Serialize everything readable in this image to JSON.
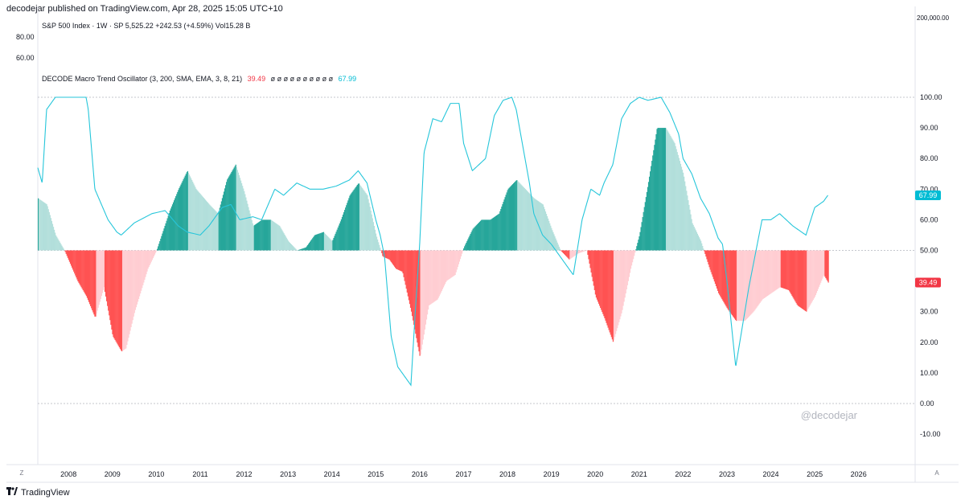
{
  "header": {
    "publish_line": "decodejar published on TradingView.com, Apr 28, 2025 15:05 UTC+10",
    "symbol_line": "S&P 500 Index · 1W · SP  5,525.22  +242.53 (+4.59%)  Vol15.28 B",
    "indicator_name": "DECODE Macro Trend Oscillator (3, 200, SMA, EMA, 3, 8, 21)",
    "indicator_value_red": "39.49",
    "indicator_empty_values": "ø  ø  ø  ø  ø  ø  ø  ø  ø  ø",
    "indicator_value_blue": "67.99",
    "left_scale_top": "80.00",
    "left_scale_bottom": "60.00"
  },
  "footer": {
    "brand": "TradingView",
    "left_button": "Z",
    "right_button": "A"
  },
  "watermark": "@decodejar",
  "colors": {
    "teal_dark": "#26a69a",
    "teal_light": "#b2dfdb",
    "red_dark": "#ff5252",
    "red_light": "#ffcdd2",
    "line": "#26c6da",
    "badge_blue": "#00bcd4",
    "badge_red": "#f23645"
  },
  "chart_data": {
    "type": "area",
    "title": "DECODE Macro Trend Oscillator (3, 200, SMA, EMA, 3, 8, 21)",
    "xlabel": "",
    "ylabel": "",
    "xlim": [
      2007.3,
      2026.8
    ],
    "ylim": [
      -20,
      125
    ],
    "midline": 50,
    "x_ticks": [
      "2008",
      "2009",
      "2010",
      "2011",
      "2012",
      "2013",
      "2014",
      "2015",
      "2016",
      "2017",
      "2018",
      "2019",
      "2020",
      "2021",
      "2022",
      "2023",
      "2024",
      "2025",
      "2026"
    ],
    "x_tick_values": [
      2008,
      2009,
      2010,
      2011,
      2012,
      2013,
      2014,
      2015,
      2016,
      2017,
      2018,
      2019,
      2020,
      2021,
      2022,
      2023,
      2024,
      2025,
      2026
    ],
    "y_ticks": [
      "100.00",
      "90.00",
      "80.00",
      "70.00",
      "60.00",
      "50.00",
      "40.00",
      "30.00",
      "20.00",
      "10.00",
      "0.00",
      "-10.00"
    ],
    "y_tick_values": [
      100,
      90,
      80,
      70,
      60,
      50,
      40,
      30,
      20,
      10,
      0,
      -10
    ],
    "top_tick_label": "200,000.00",
    "dashed_levels": [
      100,
      50,
      0
    ],
    "last_values": {
      "line": "67.99",
      "histogram": "39.49"
    },
    "series": [
      {
        "name": "Oscillator line",
        "x": [
          2007.3,
          2007.4,
          2007.5,
          2007.7,
          2008.2,
          2008.4,
          2008.45,
          2008.6,
          2008.9,
          2009.1,
          2009.2,
          2009.5,
          2009.9,
          2010.2,
          2010.5,
          2010.7,
          2011.0,
          2011.2,
          2011.5,
          2011.7,
          2011.9,
          2012.2,
          2012.4,
          2012.7,
          2012.9,
          2013.2,
          2013.5,
          2013.8,
          2014.1,
          2014.4,
          2014.6,
          2014.8,
          2015.0,
          2015.1,
          2015.2,
          2015.35,
          2015.5,
          2015.6,
          2015.8,
          2015.9,
          2016.0,
          2016.1,
          2016.3,
          2016.5,
          2016.7,
          2016.9,
          2017.0,
          2017.2,
          2017.5,
          2017.7,
          2017.9,
          2018.1,
          2018.2,
          2018.3,
          2018.5,
          2018.6,
          2018.8,
          2019.0,
          2019.1,
          2019.2,
          2019.5,
          2019.7,
          2019.9,
          2020.1,
          2020.2,
          2020.4,
          2020.6,
          2020.8,
          2021.0,
          2021.2,
          2021.5,
          2021.7,
          2021.9,
          2022.0,
          2022.2,
          2022.4,
          2022.6,
          2022.8,
          2022.9,
          2023.0,
          2023.2,
          2023.5,
          2023.8,
          2024.0,
          2024.2,
          2024.5,
          2024.6,
          2024.8,
          2025.0,
          2025.2,
          2025.3
        ],
        "values": [
          77,
          72,
          96,
          100,
          100,
          100,
          96,
          70,
          60,
          56,
          55,
          59,
          62,
          63,
          58,
          56,
          55,
          58,
          64,
          65,
          60,
          61,
          60,
          70,
          68,
          72,
          70,
          70,
          71,
          73,
          76,
          72,
          60,
          55,
          48,
          22,
          12,
          10,
          6,
          30,
          52,
          82,
          93,
          92,
          98,
          98,
          85,
          76,
          80,
          94,
          99,
          100,
          96,
          88,
          72,
          62,
          55,
          52,
          50,
          48,
          42,
          60,
          70,
          68,
          72,
          78,
          93,
          98,
          100,
          99,
          100,
          95,
          88,
          80,
          75,
          67,
          62,
          54,
          52,
          40,
          12,
          38,
          60,
          60,
          62,
          58,
          57,
          55,
          64,
          66,
          68
        ]
      },
      {
        "name": "Histogram",
        "x": [
          2007.3,
          2007.5,
          2007.7,
          2007.9,
          2008.2,
          2008.4,
          2008.6,
          2008.8,
          2009.0,
          2009.2,
          2009.3,
          2009.5,
          2009.8,
          2010.0,
          2010.3,
          2010.5,
          2010.7,
          2010.9,
          2011.2,
          2011.4,
          2011.6,
          2011.8,
          2012.0,
          2012.2,
          2012.4,
          2012.6,
          2012.8,
          2013.0,
          2013.2,
          2013.4,
          2013.6,
          2013.8,
          2014.0,
          2014.2,
          2014.4,
          2014.6,
          2014.8,
          2015.0,
          2015.15,
          2015.3,
          2015.45,
          2015.6,
          2015.8,
          2016.0,
          2016.2,
          2016.4,
          2016.6,
          2016.8,
          2017.0,
          2017.2,
          2017.4,
          2017.6,
          2017.8,
          2018.0,
          2018.2,
          2018.4,
          2018.6,
          2018.8,
          2019.0,
          2019.2,
          2019.4,
          2019.6,
          2019.8,
          2020.0,
          2020.2,
          2020.4,
          2020.6,
          2020.8,
          2021.0,
          2021.2,
          2021.4,
          2021.6,
          2021.8,
          2022.0,
          2022.2,
          2022.4,
          2022.6,
          2022.8,
          2023.0,
          2023.2,
          2023.4,
          2023.6,
          2023.8,
          2024.0,
          2024.2,
          2024.4,
          2024.6,
          2024.8,
          2025.0,
          2025.2,
          2025.3
        ],
        "values": [
          67,
          65,
          55,
          50,
          40,
          35,
          28,
          38,
          22,
          17,
          18,
          30,
          44,
          50,
          63,
          70,
          76,
          70,
          65,
          62,
          73,
          78,
          69,
          58,
          60,
          60,
          58,
          53,
          50,
          51,
          55,
          56,
          53,
          60,
          68,
          72,
          68,
          55,
          48,
          47,
          44,
          43,
          30,
          15,
          32,
          34,
          40,
          42,
          51,
          57,
          60,
          60,
          62,
          70,
          73,
          70,
          67,
          65,
          57,
          50,
          47,
          49,
          50,
          35,
          28,
          20,
          30,
          44,
          55,
          72,
          90,
          90,
          85,
          75,
          59,
          53,
          44,
          36,
          31,
          27,
          27,
          30,
          34,
          36,
          38,
          37,
          32,
          30,
          35,
          42,
          39.49
        ]
      }
    ]
  }
}
